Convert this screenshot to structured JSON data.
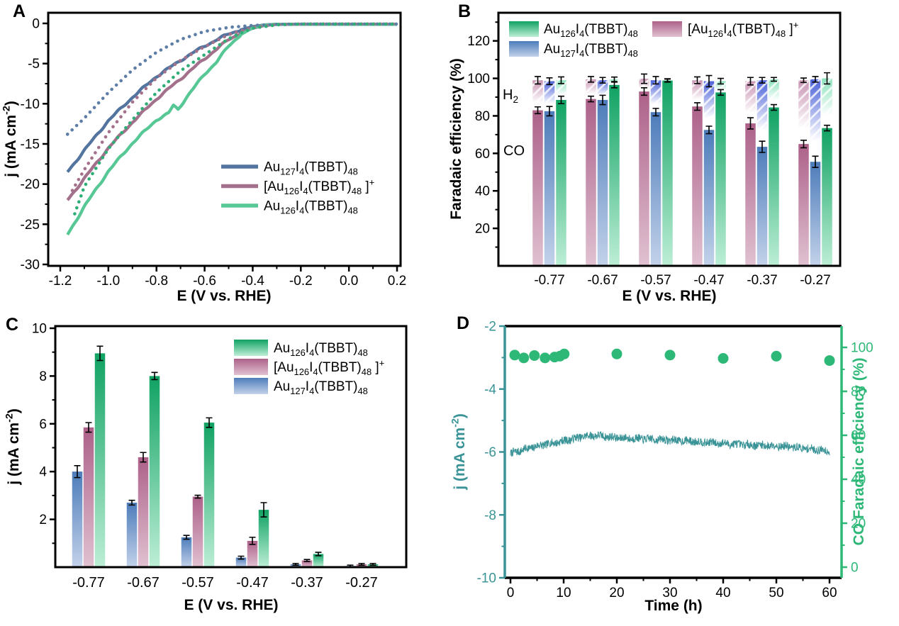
{
  "panels": {
    "a": "A",
    "b": "B",
    "c": "C",
    "d": "D"
  },
  "colors": {
    "black": "#000000",
    "line_blue": "#52749e",
    "line_mauve": "#a3718c",
    "line_green": "#57c795",
    "dot_blue": "#5e7ea6",
    "dot_mauve": "#a3718c",
    "dot_green": "#2fae78",
    "bar_blue_top": "#4d7cba",
    "bar_blue_bottom": "#c3d2ea",
    "bar_mauve_top": "#ad6189",
    "bar_mauve_bottom": "#e0c1d1",
    "bar_green_top": "#10a263",
    "bar_green_bottom": "#bdeed6",
    "h2_blue_top": "#4c63d8",
    "h2_mauve_top": "#c995b4",
    "h2_green_top": "#8ae2bc",
    "teal": "#3a9396",
    "fe_green": "#2eb877",
    "background": "#ffffff"
  },
  "chart_data": [
    {
      "panel": "A",
      "type": "line",
      "xlabel": "E (V vs. RHE)",
      "ylabel": "j (mA cm^-2^)",
      "xlim": [
        -1.25,
        0.215
      ],
      "ylim": [
        -30.2,
        1.3
      ],
      "xticks": [
        -1.2,
        -1.0,
        -0.8,
        -0.6,
        -0.4,
        -0.2,
        0.0,
        0.2
      ],
      "xtick_labels": [
        "-1.2",
        "-1.0",
        "-0.8",
        "-0.6",
        "-0.4",
        "-0.2",
        "0.0",
        "0.2"
      ],
      "yticks": [
        0,
        -5,
        -10,
        -15,
        -20,
        -25,
        -30
      ],
      "legend": [
        {
          "label": "Au~127~I~4~(TBBT)~48~",
          "color": "#52749e"
        },
        {
          "label": "[Au~126~I~4~(TBBT)~48~ ]^+^",
          "color": "#a3718c"
        },
        {
          "label": "Au~126~I~4~(TBBT)~48~",
          "color": "#57c795"
        }
      ],
      "series": [
        {
          "name": "Au~127~I~4~(TBBT)~48~",
          "line": "solid",
          "color": "#52749e",
          "points": [
            [
              -1.17,
              -18.5
            ],
            [
              -1.1,
              -15.8
            ],
            [
              -1.0,
              -12.1
            ],
            [
              -0.9,
              -9.2
            ],
            [
              -0.8,
              -6.6
            ],
            [
              -0.7,
              -4.6
            ],
            [
              -0.6,
              -2.8
            ],
            [
              -0.5,
              -1.3
            ],
            [
              -0.45,
              -0.8
            ],
            [
              -0.4,
              -0.4
            ],
            [
              -0.35,
              -0.18
            ],
            [
              -0.3,
              -0.1
            ],
            [
              -0.2,
              -0.1
            ],
            [
              0.0,
              -0.12
            ],
            [
              0.2,
              -0.12
            ]
          ]
        },
        {
          "name": "[Au~126~I~4~(TBBT)~48~ ]^+^",
          "line": "solid",
          "color": "#a3718c",
          "points": [
            [
              -1.17,
              -22.0
            ],
            [
              -1.1,
              -19.3
            ],
            [
              -1.0,
              -15.5
            ],
            [
              -0.9,
              -12.3
            ],
            [
              -0.8,
              -9.4
            ],
            [
              -0.7,
              -6.9
            ],
            [
              -0.6,
              -4.4
            ],
            [
              -0.5,
              -2.0
            ],
            [
              -0.45,
              -1.2
            ],
            [
              -0.4,
              -0.6
            ],
            [
              -0.35,
              -0.25
            ],
            [
              -0.3,
              -0.12
            ],
            [
              -0.2,
              -0.1
            ],
            [
              0.0,
              -0.12
            ],
            [
              0.2,
              -0.12
            ]
          ]
        },
        {
          "name": "Au~126~I~4~(TBBT)~48~",
          "line": "solid",
          "color": "#57c795",
          "points": [
            [
              -1.17,
              -26.3
            ],
            [
              -1.1,
              -22.8
            ],
            [
              -1.0,
              -18.4
            ],
            [
              -0.9,
              -14.9
            ],
            [
              -0.8,
              -12.0
            ],
            [
              -0.75,
              -11.2
            ],
            [
              -0.73,
              -10.2
            ],
            [
              -0.71,
              -10.7
            ],
            [
              -0.68,
              -9.4
            ],
            [
              -0.6,
              -6.3
            ],
            [
              -0.55,
              -4.8
            ],
            [
              -0.5,
              -2.8
            ],
            [
              -0.45,
              -1.4
            ],
            [
              -0.4,
              -0.55
            ],
            [
              -0.35,
              -0.2
            ],
            [
              -0.3,
              -0.1
            ],
            [
              -0.2,
              -0.1
            ],
            [
              0.0,
              -0.12
            ],
            [
              0.2,
              -0.12
            ]
          ]
        },
        {
          "name": "Au~127~I~4~(TBBT)~48~ (scan 2)",
          "line": "dotted",
          "color": "#5e7ea6",
          "points": [
            [
              -1.17,
              -13.8
            ],
            [
              -1.1,
              -11.8
            ],
            [
              -1.0,
              -8.6
            ],
            [
              -0.9,
              -5.8
            ],
            [
              -0.8,
              -3.6
            ],
            [
              -0.7,
              -2.0
            ],
            [
              -0.6,
              -1.0
            ],
            [
              -0.5,
              -0.5
            ],
            [
              -0.4,
              -0.25
            ],
            [
              -0.3,
              -0.12
            ],
            [
              -0.2,
              -0.08
            ],
            [
              0.0,
              -0.08
            ],
            [
              0.2,
              -0.08
            ]
          ]
        },
        {
          "name": "[Au~126~I~4~(TBBT)~48~ ]^+^ (scan 2)",
          "line": "dotted",
          "color": "#a3718c",
          "points": [
            [
              -1.15,
              -20.8
            ],
            [
              -1.1,
              -18.2
            ],
            [
              -1.0,
              -13.6
            ],
            [
              -0.9,
              -9.8
            ],
            [
              -0.8,
              -6.8
            ],
            [
              -0.7,
              -4.6
            ],
            [
              -0.6,
              -2.9
            ],
            [
              -0.5,
              -1.4
            ],
            [
              -0.4,
              -0.5
            ],
            [
              -0.3,
              -0.15
            ],
            [
              -0.2,
              -0.08
            ],
            [
              0.0,
              -0.08
            ],
            [
              0.2,
              -0.08
            ]
          ]
        },
        {
          "name": "Au~126~I~4~(TBBT)~48~ (scan 2)",
          "line": "dotted",
          "color": "#2fae78",
          "points": [
            [
              -1.14,
              -23.7
            ],
            [
              -1.1,
              -20.3
            ],
            [
              -1.0,
              -15.6
            ],
            [
              -0.9,
              -12.0
            ],
            [
              -0.8,
              -8.6
            ],
            [
              -0.7,
              -5.9
            ],
            [
              -0.6,
              -3.9
            ],
            [
              -0.5,
              -1.9
            ],
            [
              -0.45,
              -1.2
            ],
            [
              -0.4,
              -0.6
            ],
            [
              -0.3,
              -0.18
            ],
            [
              -0.2,
              -0.08
            ],
            [
              0.0,
              -0.08
            ],
            [
              0.2,
              -0.08
            ]
          ]
        }
      ]
    },
    {
      "panel": "B",
      "type": "stacked-grouped-bar",
      "xlabel": "E (V vs. RHE)",
      "ylabel": "Faradaic efficiency (%)",
      "categories": [
        "-0.77",
        "-0.67",
        "-0.57",
        "-0.47",
        "-0.37",
        "-0.27"
      ],
      "ylim": [
        0,
        135
      ],
      "yticks": [
        20,
        40,
        60,
        80,
        100,
        120
      ],
      "gas_labels": {
        "h2": "H~2~",
        "co": "CO"
      },
      "legend": {
        "col1": [
          {
            "key": "green",
            "label": "Au~126~I~4~(TBBT)~48~"
          },
          {
            "key": "blue",
            "label": "Au~127~I~4~(TBBT)~48~"
          }
        ],
        "col2": [
          {
            "key": "mauve",
            "label": "[Au~126~I~4~(TBBT)~48~ ]^+^"
          }
        ]
      },
      "series": [
        {
          "name": "[Au~126~I~4~(TBBT)~48~ ]^+^",
          "key": "mauve",
          "co": [
            83,
            89,
            93,
            85,
            76,
            65
          ],
          "co_err": [
            1.8,
            1.5,
            2,
            2,
            3,
            2
          ],
          "total": [
            99,
            99.5,
            99.8,
            99,
            98.5,
            99
          ],
          "total_err": [
            2,
            1.5,
            2.5,
            1.8,
            2,
            1.2
          ]
        },
        {
          "name": "Au~127~I~4~(TBBT)~48~",
          "key": "blue",
          "co": [
            82.5,
            88.5,
            82,
            72.5,
            63.5,
            55.5
          ],
          "co_err": [
            2.5,
            2.5,
            2,
            2,
            3,
            3
          ],
          "total": [
            98.5,
            99,
            99,
            98.5,
            99,
            99.5
          ],
          "total_err": [
            1.8,
            1.5,
            2,
            3,
            1.5,
            1.5
          ]
        },
        {
          "name": "Au~126~I~4~(TBBT)~48~",
          "key": "green",
          "co": [
            88.5,
            96.5,
            98.8,
            92.5,
            84.5,
            73.5
          ],
          "co_err": [
            2,
            1.5,
            0.8,
            1.5,
            1.5,
            1.5
          ],
          "total": [
            99,
            99.5,
            99,
            98.5,
            99.5,
            100
          ],
          "total_err": [
            1.8,
            1.2,
            0.8,
            1.5,
            1,
            3
          ]
        }
      ]
    },
    {
      "panel": "C",
      "type": "grouped-bar",
      "xlabel": "E (V vs. RHE)",
      "ylabel": "j (mA cm^-2^)",
      "categories": [
        "-0.77",
        "-0.67",
        "-0.57",
        "-0.47",
        "-0.37",
        "-0.27"
      ],
      "ylim": [
        0,
        10.1
      ],
      "yticks": [
        2,
        4,
        6,
        8,
        10
      ],
      "legend": [
        {
          "key": "green",
          "label": "Au~126~I~4~(TBBT)~48~"
        },
        {
          "key": "mauve",
          "label": "[Au~126~I~4~(TBBT)~48~ ]^+^"
        },
        {
          "key": "blue",
          "label": "Au~127~I~4~(TBBT)~48~"
        }
      ],
      "series": [
        {
          "name": "Au~127~I~4~(TBBT)~48~",
          "key": "blue",
          "values": [
            4.0,
            2.7,
            1.25,
            0.4,
            0.12,
            0.05
          ],
          "errors": [
            0.25,
            0.1,
            0.08,
            0.06,
            0.03,
            0.02
          ]
        },
        {
          "name": "[Au~126~I~4~(TBBT)~48~ ]^+^",
          "key": "mauve",
          "values": [
            5.85,
            4.6,
            2.95,
            1.1,
            0.28,
            0.12
          ],
          "errors": [
            0.2,
            0.2,
            0.06,
            0.15,
            0.04,
            0.03
          ]
        },
        {
          "name": "Au~126~I~4~(TBBT)~48~",
          "key": "green",
          "values": [
            8.95,
            8.0,
            6.05,
            2.4,
            0.55,
            0.12
          ],
          "errors": [
            0.3,
            0.15,
            0.2,
            0.3,
            0.07,
            0.03
          ]
        }
      ]
    },
    {
      "panel": "D",
      "type": "dual-axis-line-scatter",
      "xlabel": "Time (h)",
      "xlim": [
        -1,
        62.5
      ],
      "xticks": [
        0,
        10,
        20,
        30,
        40,
        50,
        60
      ],
      "left_axis": {
        "label": "j (mA cm^-2^)",
        "color": "#3a9396",
        "ylim": [
          -10,
          -2
        ],
        "yticks": [
          -2,
          -4,
          -6,
          -8,
          -10
        ]
      },
      "right_axis": {
        "label": "CO Faradaic efficiency (%)",
        "color": "#2eb877",
        "ylim": [
          -5,
          110
        ],
        "yticks": [
          0,
          20,
          40,
          60,
          80,
          100
        ]
      },
      "current_trace": {
        "name": "j vs time",
        "color": "#3a9396",
        "noise_amplitude": 0.13,
        "anchors": [
          [
            0,
            -6.05
          ],
          [
            3,
            -5.9
          ],
          [
            6,
            -5.78
          ],
          [
            10,
            -5.65
          ],
          [
            14,
            -5.5
          ],
          [
            16,
            -5.47
          ],
          [
            20,
            -5.55
          ],
          [
            25,
            -5.58
          ],
          [
            30,
            -5.62
          ],
          [
            35,
            -5.67
          ],
          [
            40,
            -5.73
          ],
          [
            45,
            -5.78
          ],
          [
            50,
            -5.8
          ],
          [
            55,
            -5.88
          ],
          [
            60,
            -5.97
          ]
        ]
      },
      "fe_points": {
        "name": "CO Faradaic efficiency",
        "color": "#2eb877",
        "points": [
          [
            0.8,
            96.5
          ],
          [
            2.5,
            95.2
          ],
          [
            4.5,
            96.3
          ],
          [
            6.5,
            95.2
          ],
          [
            8.3,
            95.6
          ],
          [
            9.3,
            96
          ],
          [
            10.1,
            97
          ],
          [
            20,
            97
          ],
          [
            30,
            96.5
          ],
          [
            40,
            95
          ],
          [
            50,
            96
          ],
          [
            60,
            94
          ]
        ]
      }
    }
  ]
}
